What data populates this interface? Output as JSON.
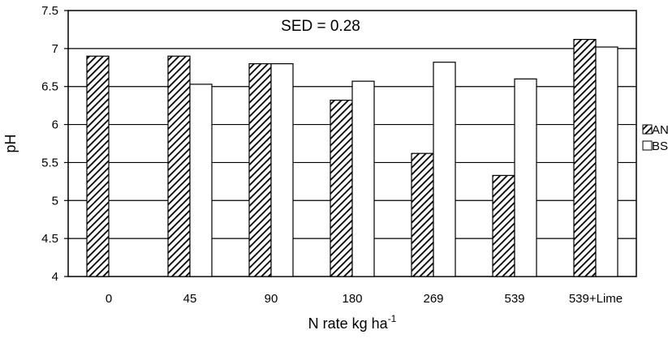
{
  "chart_data": {
    "type": "bar",
    "xlabel": "N rate kg ha",
    "xlabel_superscript": "-1",
    "ylabel": "pH",
    "annotation": "SED = 0.28",
    "ylim": [
      4,
      7.5
    ],
    "yticks": [
      "4",
      "4.5",
      "5",
      "5.5",
      "6",
      "6.5",
      "7",
      "7.5"
    ],
    "categories": [
      "0",
      "45",
      "90",
      "180",
      "269",
      "539",
      "539+Lime"
    ],
    "series": [
      {
        "name": "AN",
        "pattern": "diagonal-hatch",
        "values": [
          6.9,
          6.9,
          6.8,
          6.32,
          5.62,
          5.33,
          7.12
        ]
      },
      {
        "name": "BS",
        "pattern": "white",
        "values": [
          null,
          6.53,
          6.8,
          6.57,
          6.82,
          6.6,
          7.02
        ]
      }
    ],
    "grid": "horizontal",
    "legend_position": "right"
  }
}
